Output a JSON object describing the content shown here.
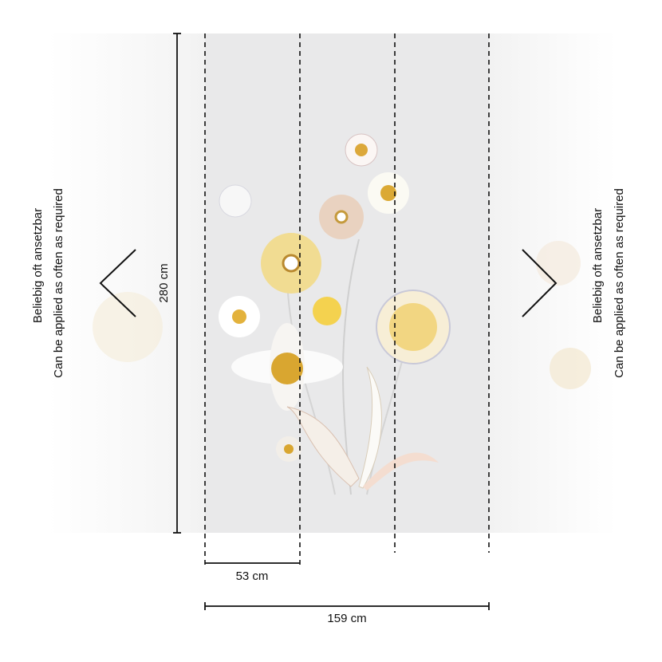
{
  "side_note": {
    "line_1": "Beliebig oft ansetzbar",
    "line_2": "Can be applied as often as required"
  },
  "dimensions": {
    "height": "280 cm",
    "panel_width": "53 cm",
    "total_width": "159 cm"
  }
}
